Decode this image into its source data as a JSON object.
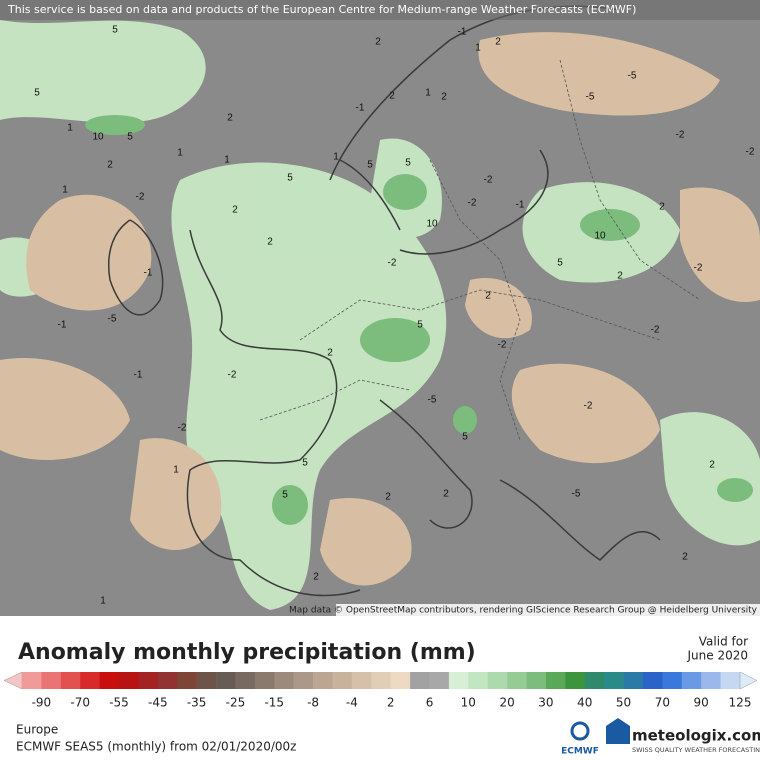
{
  "header": {
    "disclaimer": "This service is based on data and products of the European Centre for Medium-range Weather Forecasts (ECMWF)"
  },
  "map": {
    "attribution": "Map data © OpenStreetMap contributors, rendering GIScience Research Group @ Heidelberg University",
    "contour_labels": [
      "5",
      "2",
      "-1",
      "1",
      "2",
      "5",
      "1",
      "10",
      "5",
      "2",
      "-1",
      "2",
      "1",
      "2",
      "-5",
      "-5",
      "-2",
      "-2",
      "2",
      "1",
      "1",
      "5",
      "1",
      "5",
      "5",
      "10",
      "-2",
      "-2",
      "-1",
      "10",
      "2",
      "1",
      "-2",
      "2",
      "2",
      "-1",
      "-5",
      "-1",
      "-2",
      "5",
      "2",
      "5",
      "2",
      "-2",
      "2",
      "-2",
      "-1",
      "-2",
      "-2",
      "-2",
      "5",
      "5",
      "2",
      "2",
      "-5",
      "2",
      "2",
      "1",
      "2",
      "1",
      "-2",
      "5",
      "-5"
    ]
  },
  "legend": {
    "title": "Anomaly monthly precipitation (mm)",
    "valid_label": "Valid for",
    "valid_date": "June 2020",
    "ticks": [
      "-90",
      "-70",
      "-55",
      "-45",
      "-35",
      "-25",
      "-15",
      "-8",
      "-4",
      "2",
      "6",
      "10",
      "20",
      "30",
      "40",
      "50",
      "70",
      "90",
      "125"
    ],
    "colors": [
      "#f5c4c4",
      "#f09a9a",
      "#ea7474",
      "#e25050",
      "#d82a2a",
      "#c80e0e",
      "#b81212",
      "#a42222",
      "#923232",
      "#7e4436",
      "#6e5448",
      "#675d55",
      "#786a60",
      "#8a7a6e",
      "#9c8a7c",
      "#ac9888",
      "#bca692",
      "#c8b29c",
      "#d6c0aa",
      "#e2cdb6",
      "#eed9c2",
      "#a2a2a2",
      "#a8a8a8",
      "#d6efd6",
      "#c2e6c2",
      "#acdaac",
      "#94cc94",
      "#7cbc7c",
      "#5aa85a",
      "#3c943c",
      "#2e8a6a",
      "#2a8a8a",
      "#2a7aa8",
      "#2a64c8",
      "#3a78dc",
      "#6a9ae6",
      "#9ab8ec",
      "#c4d8f2",
      "#ddeaf8"
    ]
  },
  "footer": {
    "region": "Europe",
    "model": "ECMWF SEAS5 (monthly) from 02/01/2020/00z",
    "ecmwf": "ECMWF",
    "brand": "meteologix.com",
    "tagline": "SWISS QUALITY WEATHER FORECASTING"
  }
}
